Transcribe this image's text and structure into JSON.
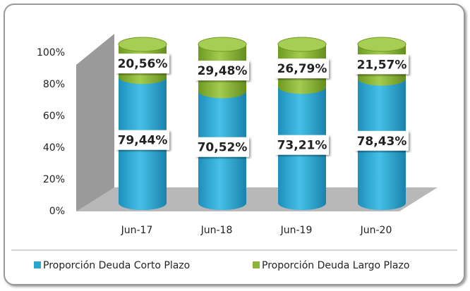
{
  "chart_data": {
    "type": "stacked_cylinder",
    "categories": [
      "Jun-17",
      "Jun-18",
      "Jun-19",
      "Jun-20"
    ],
    "series": [
      {
        "name": "Proporción Deuda Corto Plazo",
        "color": "#2aa6d3",
        "values": [
          79.44,
          70.52,
          73.21,
          78.43
        ],
        "value_labels": [
          "79,44%",
          "70,52%",
          "73,21%",
          "78,43%"
        ]
      },
      {
        "name": "Proporción Deuda Largo Plazo",
        "color": "#8cb43a",
        "values": [
          20.56,
          29.48,
          26.79,
          21.57
        ],
        "value_labels": [
          "20,56%",
          "29,48%",
          "26,79%",
          "21,57%"
        ]
      }
    ],
    "ylim": [
      0,
      100
    ],
    "yticks": [
      {
        "value": 0,
        "label": "0%"
      },
      {
        "value": 20,
        "label": "20%"
      },
      {
        "value": 40,
        "label": "40%"
      },
      {
        "value": 60,
        "label": "60%"
      },
      {
        "value": 80,
        "label": "80%"
      },
      {
        "value": 100,
        "label": "100%"
      }
    ],
    "legend": "bottom"
  }
}
